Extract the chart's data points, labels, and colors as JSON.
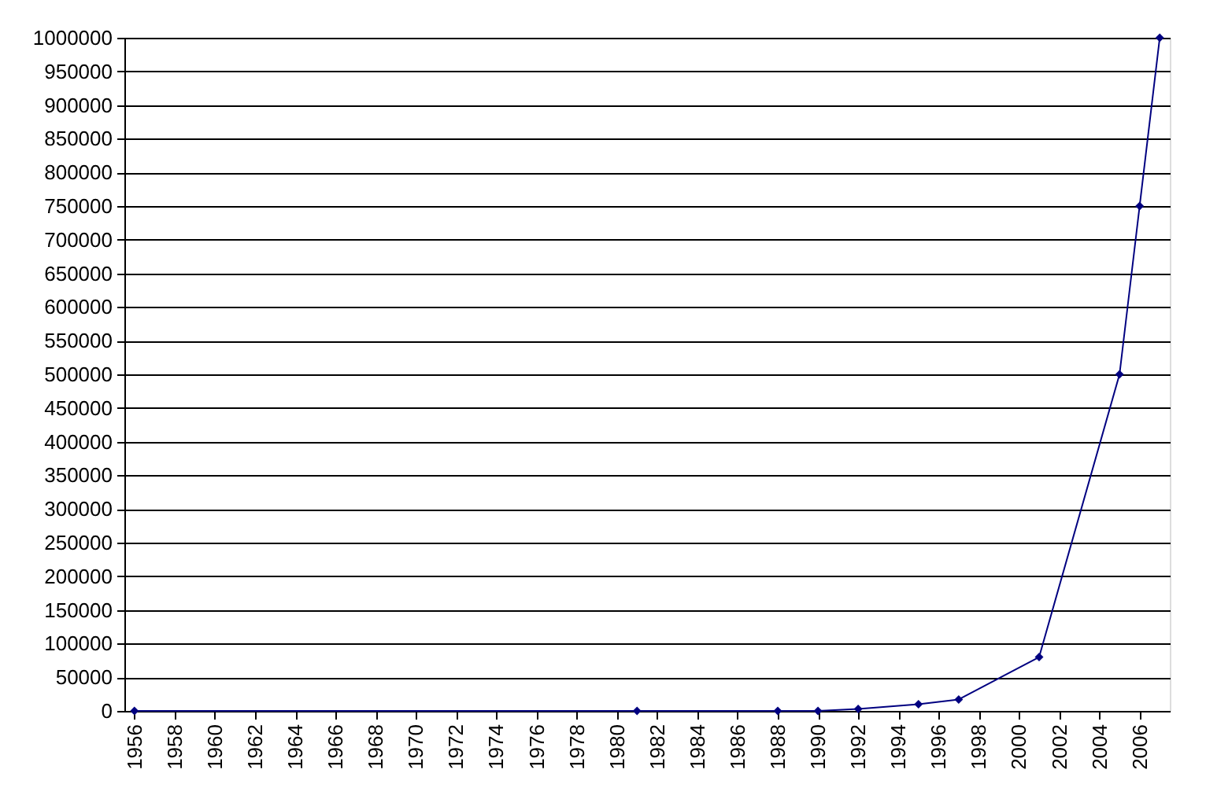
{
  "chart_data": {
    "type": "line",
    "x": [
      1956,
      1981,
      1988,
      1990,
      1992,
      1995,
      1997,
      2001,
      2005,
      2006,
      2007
    ],
    "series": [
      {
        "color": "#000080",
        "values": [
          0,
          0,
          0,
          0,
          3000,
          10000,
          17000,
          80000,
          500000,
          750000,
          1000000
        ]
      }
    ],
    "xlim": [
      1955.5,
      2007.5
    ],
    "xticks": [
      1956,
      1958,
      1960,
      1962,
      1964,
      1966,
      1968,
      1970,
      1972,
      1974,
      1976,
      1978,
      1980,
      1982,
      1984,
      1986,
      1988,
      1990,
      1992,
      1994,
      1996,
      1998,
      2000,
      2002,
      2004,
      2006
    ],
    "ylim": [
      0,
      1000000
    ],
    "yticks": [
      0,
      50000,
      100000,
      150000,
      200000,
      250000,
      300000,
      350000,
      400000,
      450000,
      500000,
      550000,
      600000,
      650000,
      700000,
      750000,
      800000,
      850000,
      900000,
      950000,
      1000000
    ],
    "grid": "y",
    "marker": "diamond",
    "line_style": "solid"
  }
}
